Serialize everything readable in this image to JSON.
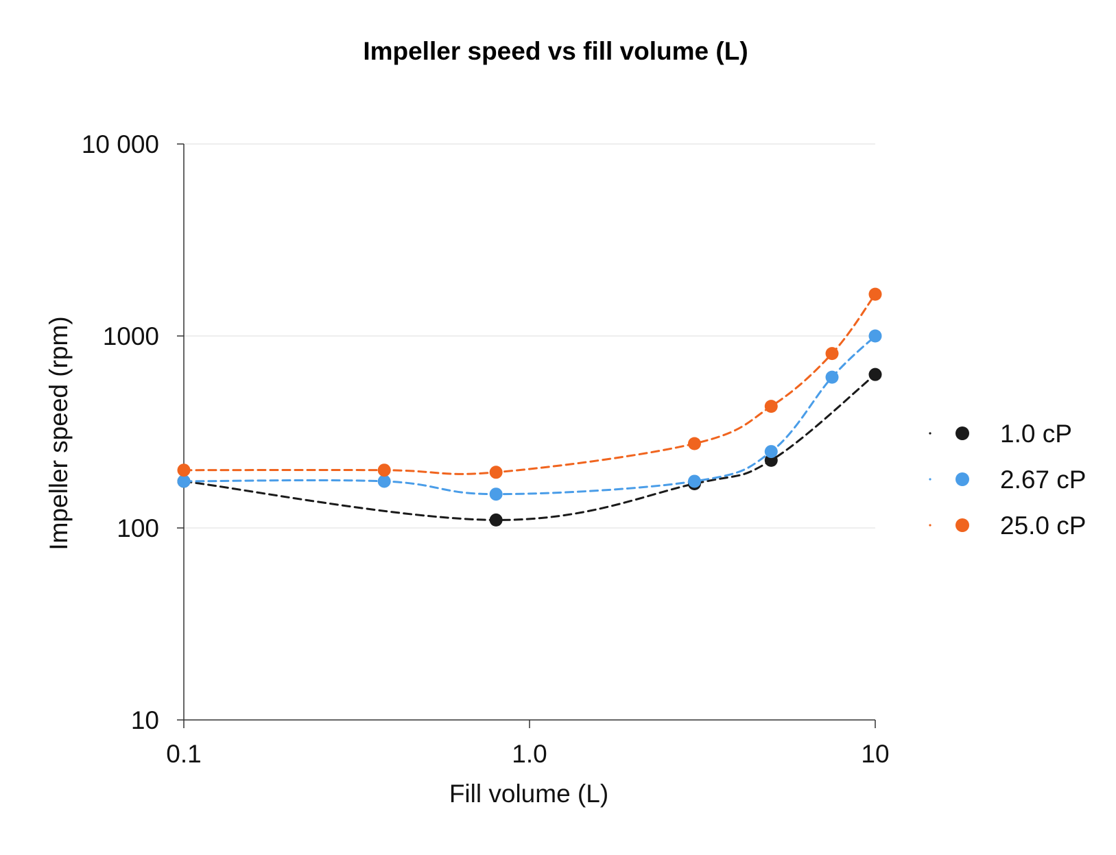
{
  "chart_data": {
    "type": "line",
    "title": "Impeller speed vs  fill volume (L)",
    "xlabel": "Fill volume (L)",
    "ylabel": "Impeller speed (rpm)",
    "x_scale": "log",
    "y_scale": "log",
    "xlim": [
      0.1,
      10
    ],
    "ylim": [
      10,
      10000
    ],
    "x_ticks": [
      {
        "value": 0.1,
        "label": "0.1"
      },
      {
        "value": 1,
        "label": "1.0"
      },
      {
        "value": 10,
        "label": "10"
      }
    ],
    "y_ticks": [
      {
        "value": 10,
        "label": "10"
      },
      {
        "value": 100,
        "label": "100"
      },
      {
        "value": 1000,
        "label": "1000"
      },
      {
        "value": 10000,
        "label": "10 000"
      }
    ],
    "grid": "horizontal",
    "legend_position": "right",
    "line_style": "dashed",
    "series": [
      {
        "name": "1.0 cP",
        "color": "#1a1a1a",
        "points": [
          [
            0.1,
            175
          ],
          [
            0.8,
            110
          ],
          [
            3.0,
            170
          ],
          [
            5.0,
            225
          ],
          [
            10.0,
            630
          ]
        ]
      },
      {
        "name": "2.67 cP",
        "color": "#4a9de8",
        "points": [
          [
            0.1,
            175
          ],
          [
            0.38,
            175
          ],
          [
            0.8,
            150
          ],
          [
            3.0,
            175
          ],
          [
            5.0,
            250
          ],
          [
            7.5,
            610
          ],
          [
            10.0,
            1000
          ]
        ]
      },
      {
        "name": "25.0 cP",
        "color": "#f0641e",
        "points": [
          [
            0.1,
            200
          ],
          [
            0.38,
            200
          ],
          [
            0.8,
            195
          ],
          [
            3.0,
            275
          ],
          [
            5.0,
            430
          ],
          [
            7.5,
            810
          ],
          [
            10.0,
            1650
          ]
        ]
      }
    ]
  }
}
